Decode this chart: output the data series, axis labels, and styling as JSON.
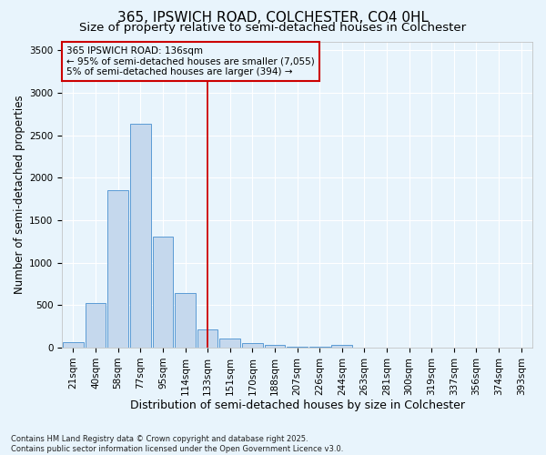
{
  "title": "365, IPSWICH ROAD, COLCHESTER, CO4 0HL",
  "subtitle": "Size of property relative to semi-detached houses in Colchester",
  "xlabel": "Distribution of semi-detached houses by size in Colchester",
  "ylabel": "Number of semi-detached properties",
  "footnote": "Contains HM Land Registry data © Crown copyright and database right 2025.\nContains public sector information licensed under the Open Government Licence v3.0.",
  "categories": [
    "21sqm",
    "40sqm",
    "58sqm",
    "77sqm",
    "95sqm",
    "114sqm",
    "133sqm",
    "151sqm",
    "170sqm",
    "188sqm",
    "207sqm",
    "226sqm",
    "244sqm",
    "263sqm",
    "281sqm",
    "300sqm",
    "319sqm",
    "337sqm",
    "356sqm",
    "374sqm",
    "393sqm"
  ],
  "values": [
    65,
    530,
    1850,
    2640,
    1310,
    640,
    210,
    105,
    50,
    35,
    15,
    10,
    30,
    5,
    2,
    1,
    0,
    0,
    0,
    0,
    0
  ],
  "bar_color": "#c5d8ed",
  "bar_edge_color": "#5b9bd5",
  "vline_x": 6,
  "vline_color": "#cc0000",
  "annotation_line1": "365 IPSWICH ROAD: 136sqm",
  "annotation_line2": "← 95% of semi-detached houses are smaller (7,055)",
  "annotation_line3": "5% of semi-detached houses are larger (394) →",
  "annotation_box_edge": "#cc0000",
  "ylim": [
    0,
    3600
  ],
  "yticks": [
    0,
    500,
    1000,
    1500,
    2000,
    2500,
    3000,
    3500
  ],
  "background_color": "#e8f4fc",
  "grid_color": "#ffffff",
  "title_fontsize": 11,
  "subtitle_fontsize": 9.5,
  "xlabel_fontsize": 9,
  "ylabel_fontsize": 8.5,
  "tick_fontsize": 7.5,
  "annot_fontsize": 7.5,
  "footnote_fontsize": 6.0
}
